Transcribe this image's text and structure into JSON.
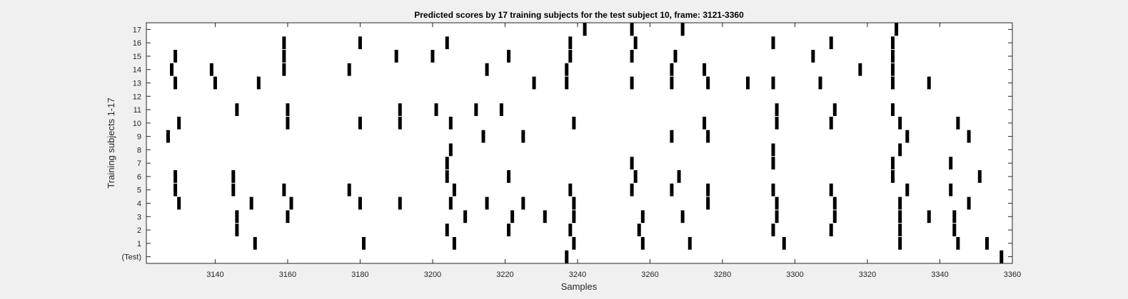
{
  "chart_data": {
    "type": "raster",
    "title": "Predicted scores by 17 training subjects for the test subject 10, frame: 3121-3360",
    "xlabel": "Samples",
    "ylabel": "Training subjects 1-17",
    "xlim": [
      3121,
      3360
    ],
    "x_ticks": [
      3140,
      3160,
      3180,
      3200,
      3220,
      3240,
      3260,
      3280,
      3300,
      3320,
      3340,
      3360
    ],
    "y_tick_labels": [
      "(Test)",
      "1",
      "2",
      "3",
      "4",
      "5",
      "6",
      "7",
      "8",
      "9",
      "10",
      "11",
      "12",
      "13",
      "14",
      "15",
      "16",
      "17"
    ],
    "grid": false,
    "mark_color": "#000000",
    "rows": [
      {
        "label": "(Test)",
        "samples": [
          3237,
          3357
        ]
      },
      {
        "label": "1",
        "samples": [
          3151,
          3181,
          3206,
          3239,
          3258,
          3271,
          3297,
          3329,
          3345,
          3353
        ]
      },
      {
        "label": "2",
        "samples": [
          3146,
          3204,
          3221,
          3238,
          3257,
          3294,
          3310,
          3329,
          3344
        ]
      },
      {
        "label": "3",
        "samples": [
          3146,
          3160,
          3209,
          3222,
          3231,
          3239,
          3258,
          3269,
          3295,
          3311,
          3329,
          3337,
          3344
        ]
      },
      {
        "label": "4",
        "samples": [
          3130,
          3150,
          3161,
          3180,
          3191,
          3205,
          3215,
          3225,
          3239,
          3276,
          3295,
          3311,
          3329,
          3348
        ]
      },
      {
        "label": "5",
        "samples": [
          3129,
          3145,
          3159,
          3177,
          3206,
          3238,
          3255,
          3266,
          3276,
          3294,
          3310,
          3331,
          3343
        ]
      },
      {
        "label": "6",
        "samples": [
          3129,
          3145,
          3204,
          3221,
          3256,
          3268,
          3327,
          3351
        ]
      },
      {
        "label": "7",
        "samples": [
          3204,
          3255,
          3294,
          3327,
          3343
        ]
      },
      {
        "label": "8",
        "samples": [
          3205,
          3294,
          3329
        ]
      },
      {
        "label": "9",
        "samples": [
          3127,
          3214,
          3225,
          3266,
          3276,
          3331,
          3348
        ]
      },
      {
        "label": "10",
        "samples": [
          3130,
          3160,
          3180,
          3191,
          3205,
          3239,
          3275,
          3295,
          3310,
          3329,
          3345
        ]
      },
      {
        "label": "11",
        "samples": [
          3146,
          3160,
          3191,
          3201,
          3212,
          3219,
          3295,
          3311,
          3327
        ]
      },
      {
        "label": "12",
        "samples": []
      },
      {
        "label": "13",
        "samples": [
          3129,
          3140,
          3152,
          3228,
          3237,
          3255,
          3266,
          3276,
          3287,
          3294,
          3307,
          3327,
          3337
        ]
      },
      {
        "label": "14",
        "samples": [
          3128,
          3139,
          3159,
          3177,
          3215,
          3237,
          3266,
          3275,
          3318,
          3327
        ]
      },
      {
        "label": "15",
        "samples": [
          3129,
          3159,
          3190,
          3200,
          3221,
          3238,
          3255,
          3267,
          3305,
          3327
        ]
      },
      {
        "label": "16",
        "samples": [
          3159,
          3180,
          3204,
          3238,
          3256,
          3294,
          3310,
          3327
        ]
      },
      {
        "label": "17",
        "samples": [
          3242,
          3255,
          3269,
          3328
        ]
      }
    ]
  }
}
